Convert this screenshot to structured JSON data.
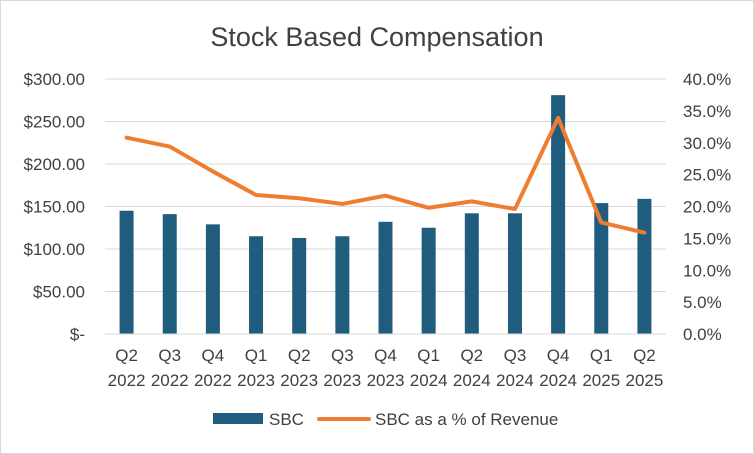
{
  "chart_data": {
    "type": "bar+line",
    "title": "Stock Based Compensation",
    "categories": [
      [
        "Q2",
        "2022"
      ],
      [
        "Q3",
        "2022"
      ],
      [
        "Q4",
        "2022"
      ],
      [
        "Q1",
        "2023"
      ],
      [
        "Q2",
        "2023"
      ],
      [
        "Q3",
        "2023"
      ],
      [
        "Q4",
        "2023"
      ],
      [
        "Q1",
        "2024"
      ],
      [
        "Q2",
        "2024"
      ],
      [
        "Q3",
        "2024"
      ],
      [
        "Q4",
        "2024"
      ],
      [
        "Q1",
        "2025"
      ],
      [
        "Q2",
        "2025"
      ]
    ],
    "series": [
      {
        "name": "SBC",
        "type": "bar",
        "axis": "left",
        "color": "#1f5c7e",
        "values": [
          145,
          141,
          129,
          115,
          113,
          115,
          132,
          125,
          142,
          142,
          281,
          154,
          159
        ]
      },
      {
        "name": "SBC as a % of Revenue",
        "type": "line",
        "axis": "right",
        "color": "#ed7d31",
        "values": [
          30.8,
          29.4,
          25.5,
          21.8,
          21.3,
          20.4,
          21.7,
          19.8,
          20.8,
          19.6,
          33.9,
          17.5,
          15.9
        ]
      }
    ],
    "y_left": {
      "min": 0,
      "max": 300,
      "ticks": [
        0,
        50,
        100,
        150,
        200,
        250,
        300
      ],
      "tick_labels": [
        "$-",
        "$50.00",
        "$100.00",
        "$150.00",
        "$200.00",
        "$250.00",
        "$300.00"
      ]
    },
    "y_right": {
      "min": 0,
      "max": 40,
      "ticks": [
        0,
        5,
        10,
        15,
        20,
        25,
        30,
        35,
        40
      ],
      "tick_labels": [
        "0.0%",
        "5.0%",
        "10.0%",
        "15.0%",
        "20.0%",
        "25.0%",
        "30.0%",
        "35.0%",
        "40.0%"
      ]
    },
    "grid": true,
    "legend": "bottom"
  }
}
